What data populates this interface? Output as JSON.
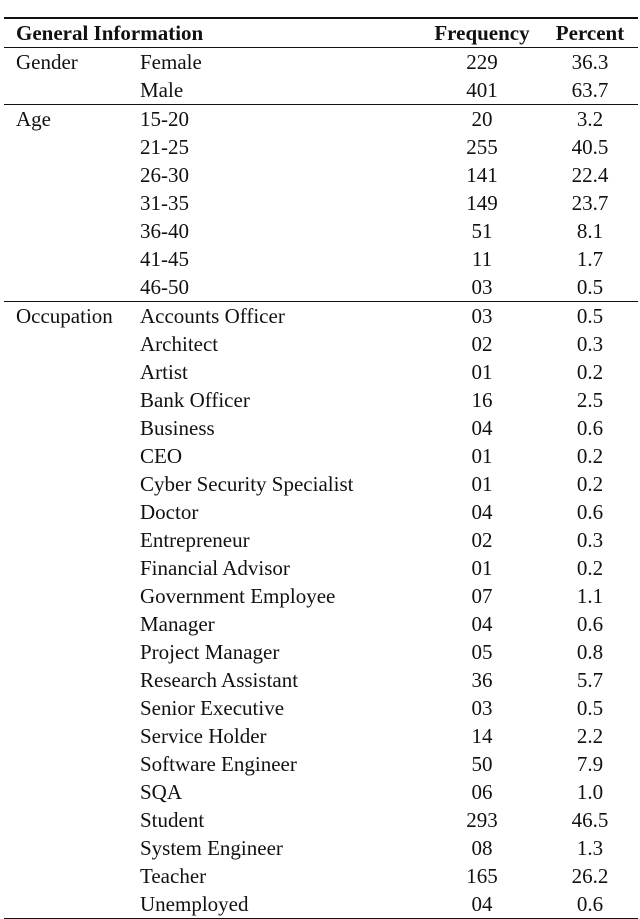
{
  "header": {
    "general": "General Information",
    "frequency": "Frequency",
    "percent": "Percent"
  },
  "groups": [
    {
      "name": "Gender",
      "rows": [
        [
          "Female",
          "229",
          "36.3"
        ],
        [
          "Male",
          "401",
          "63.7"
        ]
      ]
    },
    {
      "name": "Age",
      "rows": [
        [
          "15-20",
          "20",
          "3.2"
        ],
        [
          "21-25",
          "255",
          "40.5"
        ],
        [
          "26-30",
          "141",
          "22.4"
        ],
        [
          "31-35",
          "149",
          "23.7"
        ],
        [
          "36-40",
          "51",
          "8.1"
        ],
        [
          "41-45",
          "11",
          "1.7"
        ],
        [
          "46-50",
          "03",
          "0.5"
        ]
      ]
    },
    {
      "name": "Occupation",
      "rows": [
        [
          "Accounts Officer",
          "03",
          "0.5"
        ],
        [
          "Architect",
          "02",
          "0.3"
        ],
        [
          "Artist",
          "01",
          "0.2"
        ],
        [
          "Bank Officer",
          "16",
          "2.5"
        ],
        [
          "Business",
          "04",
          "0.6"
        ],
        [
          "CEO",
          "01",
          "0.2"
        ],
        [
          "Cyber Security Specialist",
          "01",
          "0.2"
        ],
        [
          "Doctor",
          "04",
          "0.6"
        ],
        [
          "Entrepreneur",
          "02",
          "0.3"
        ],
        [
          "Financial Advisor",
          "01",
          "0.2"
        ],
        [
          "Government Employee",
          "07",
          "1.1"
        ],
        [
          "Manager",
          "04",
          "0.6"
        ],
        [
          "Project Manager",
          "05",
          "0.8"
        ],
        [
          "Research Assistant",
          "36",
          "5.7"
        ],
        [
          "Senior Executive",
          "03",
          "0.5"
        ],
        [
          "Service Holder",
          "14",
          "2.2"
        ],
        [
          "Software Engineer",
          "50",
          "7.9"
        ],
        [
          "SQA",
          "06",
          "1.0"
        ],
        [
          "Student",
          "293",
          "46.5"
        ],
        [
          "System Engineer",
          "08",
          "1.3"
        ],
        [
          "Teacher",
          "165",
          "26.2"
        ],
        [
          "Unemployed",
          "04",
          "0.6"
        ]
      ]
    }
  ]
}
